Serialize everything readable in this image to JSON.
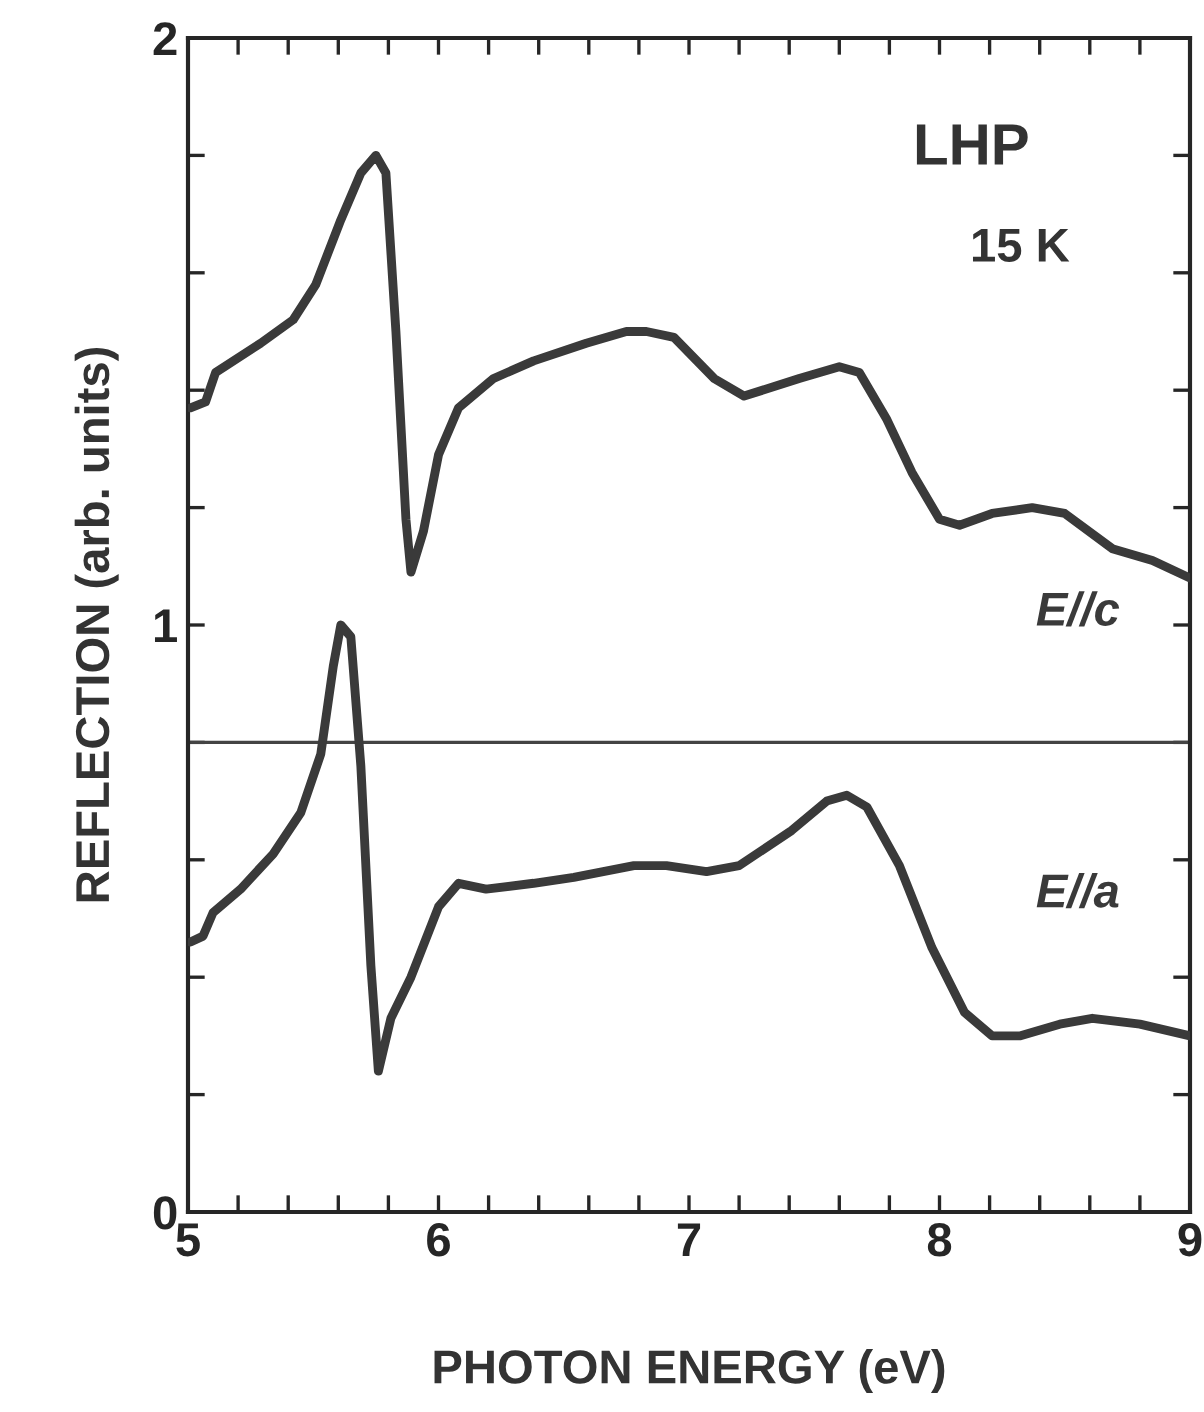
{
  "chart_data": {
    "type": "line",
    "xlabel": "PHOTON ENERGY (eV)",
    "ylabel": "REFLECTION (arb. units)",
    "annotations": [
      "LHP",
      "15 K"
    ],
    "xlim": [
      5,
      9
    ],
    "ylim": [
      0,
      2
    ],
    "xticks": [
      5,
      {
        "value": 5.2,
        "label": null
      },
      {
        "value": 5.4,
        "label": null
      },
      {
        "value": 5.6,
        "label": null
      },
      {
        "value": 5.8,
        "label": null
      },
      6,
      {
        "value": 6.2,
        "label": null
      },
      {
        "value": 6.4,
        "label": null
      },
      {
        "value": 6.6,
        "label": null
      },
      {
        "value": 6.8,
        "label": null
      },
      7,
      {
        "value": 7.2,
        "label": null
      },
      {
        "value": 7.4,
        "label": null
      },
      {
        "value": 7.6,
        "label": null
      },
      {
        "value": 7.8,
        "label": null
      },
      8,
      {
        "value": 8.2,
        "label": null
      },
      {
        "value": 8.4,
        "label": null
      },
      {
        "value": 8.6,
        "label": null
      },
      {
        "value": 8.8,
        "label": null
      },
      9
    ],
    "yticks": [
      0,
      {
        "value": 0.2,
        "label": null
      },
      {
        "value": 0.4,
        "label": null
      },
      {
        "value": 0.6,
        "label": null
      },
      {
        "value": 0.8,
        "label": null
      },
      1,
      {
        "value": 1.2,
        "label": null
      },
      {
        "value": 1.4,
        "label": null
      },
      {
        "value": 1.6,
        "label": null
      },
      {
        "value": 1.8,
        "label": null
      },
      2
    ],
    "grid": false,
    "legend": false,
    "marker": "none",
    "line_style": "solid",
    "ref_lines": [
      {
        "axis": "y",
        "value": 0.8,
        "color": "#444444"
      }
    ],
    "series": [
      {
        "name": "E//c",
        "color": "#3a3a3a",
        "x": [
          5.01,
          5.07,
          5.11,
          5.29,
          5.42,
          5.51,
          5.61,
          5.69,
          5.75,
          5.79,
          5.83,
          5.87,
          5.89,
          5.94,
          6.0,
          6.08,
          6.22,
          6.38,
          6.59,
          6.75,
          6.83,
          6.94,
          7.1,
          7.22,
          7.44,
          7.6,
          7.68,
          7.79,
          7.89,
          8.0,
          8.08,
          8.21,
          8.37,
          8.5,
          8.69,
          8.85,
          9.0
        ],
        "values": [
          1.37,
          1.38,
          1.43,
          1.48,
          1.52,
          1.58,
          1.69,
          1.77,
          1.8,
          1.77,
          1.5,
          1.18,
          1.09,
          1.16,
          1.29,
          1.37,
          1.42,
          1.45,
          1.48,
          1.5,
          1.5,
          1.49,
          1.42,
          1.39,
          1.42,
          1.44,
          1.43,
          1.35,
          1.26,
          1.18,
          1.17,
          1.19,
          1.2,
          1.19,
          1.13,
          1.11,
          1.08
        ]
      },
      {
        "name": "E//a",
        "color": "#3a3a3a",
        "x": [
          5.01,
          5.06,
          5.1,
          5.21,
          5.34,
          5.45,
          5.53,
          5.58,
          5.61,
          5.65,
          5.69,
          5.73,
          5.76,
          5.81,
          5.89,
          6.0,
          6.08,
          6.19,
          6.38,
          6.54,
          6.78,
          6.91,
          7.07,
          7.2,
          7.41,
          7.55,
          7.63,
          7.71,
          7.84,
          7.97,
          8.1,
          8.21,
          8.32,
          8.48,
          8.61,
          8.8,
          9.0
        ],
        "values": [
          0.46,
          0.47,
          0.51,
          0.55,
          0.61,
          0.68,
          0.78,
          0.93,
          1.0,
          0.98,
          0.76,
          0.42,
          0.24,
          0.33,
          0.4,
          0.52,
          0.56,
          0.55,
          0.56,
          0.57,
          0.59,
          0.59,
          0.58,
          0.59,
          0.65,
          0.7,
          0.71,
          0.69,
          0.59,
          0.45,
          0.34,
          0.3,
          0.3,
          0.32,
          0.33,
          0.32,
          0.3
        ]
      }
    ]
  }
}
